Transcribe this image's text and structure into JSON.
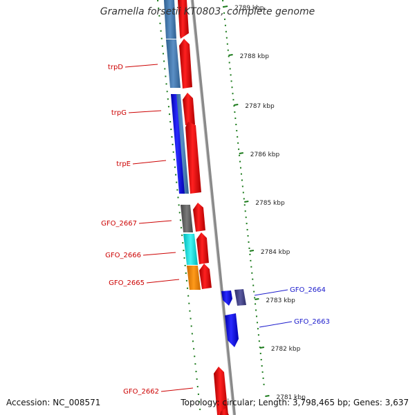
{
  "title": "Gramella forsetii KT0803, complete genome",
  "footer": {
    "accession": "Accession: NC_008571",
    "summary": "Topology: circular; Length: 3,798,465 bp; Genes: 3,637"
  },
  "scale": {
    "ticks": [
      "2789 kbp",
      "2788 kbp",
      "2787 kbp",
      "2786 kbp",
      "2785 kbp",
      "2784 kbp",
      "2783 kbp",
      "2782 kbp",
      "2781 kbp"
    ]
  },
  "genes_left": [
    {
      "label": "trpD"
    },
    {
      "label": "trpG"
    },
    {
      "label": "trpE"
    },
    {
      "label": "GFO_2667"
    },
    {
      "label": "GFO_2666"
    },
    {
      "label": "GFO_2665"
    },
    {
      "label": "GFO_2662"
    }
  ],
  "genes_right": [
    {
      "label": "GFO_2664"
    },
    {
      "label": "GFO_2663"
    }
  ],
  "colors": {
    "forward": "#e8001c",
    "reverse": "#1a1aee",
    "label_left": "#cc0000",
    "label_right": "#1a1acc",
    "tick": "#1a7a1a",
    "backbone": "#8a8a8a",
    "cog_steelblue": "#4a7fb5",
    "cog_gray": "#6a6a6a",
    "cog_cyan": "#22dddd",
    "cog_orange": "#ee8800",
    "cog_slate": "#4a4a8a"
  }
}
